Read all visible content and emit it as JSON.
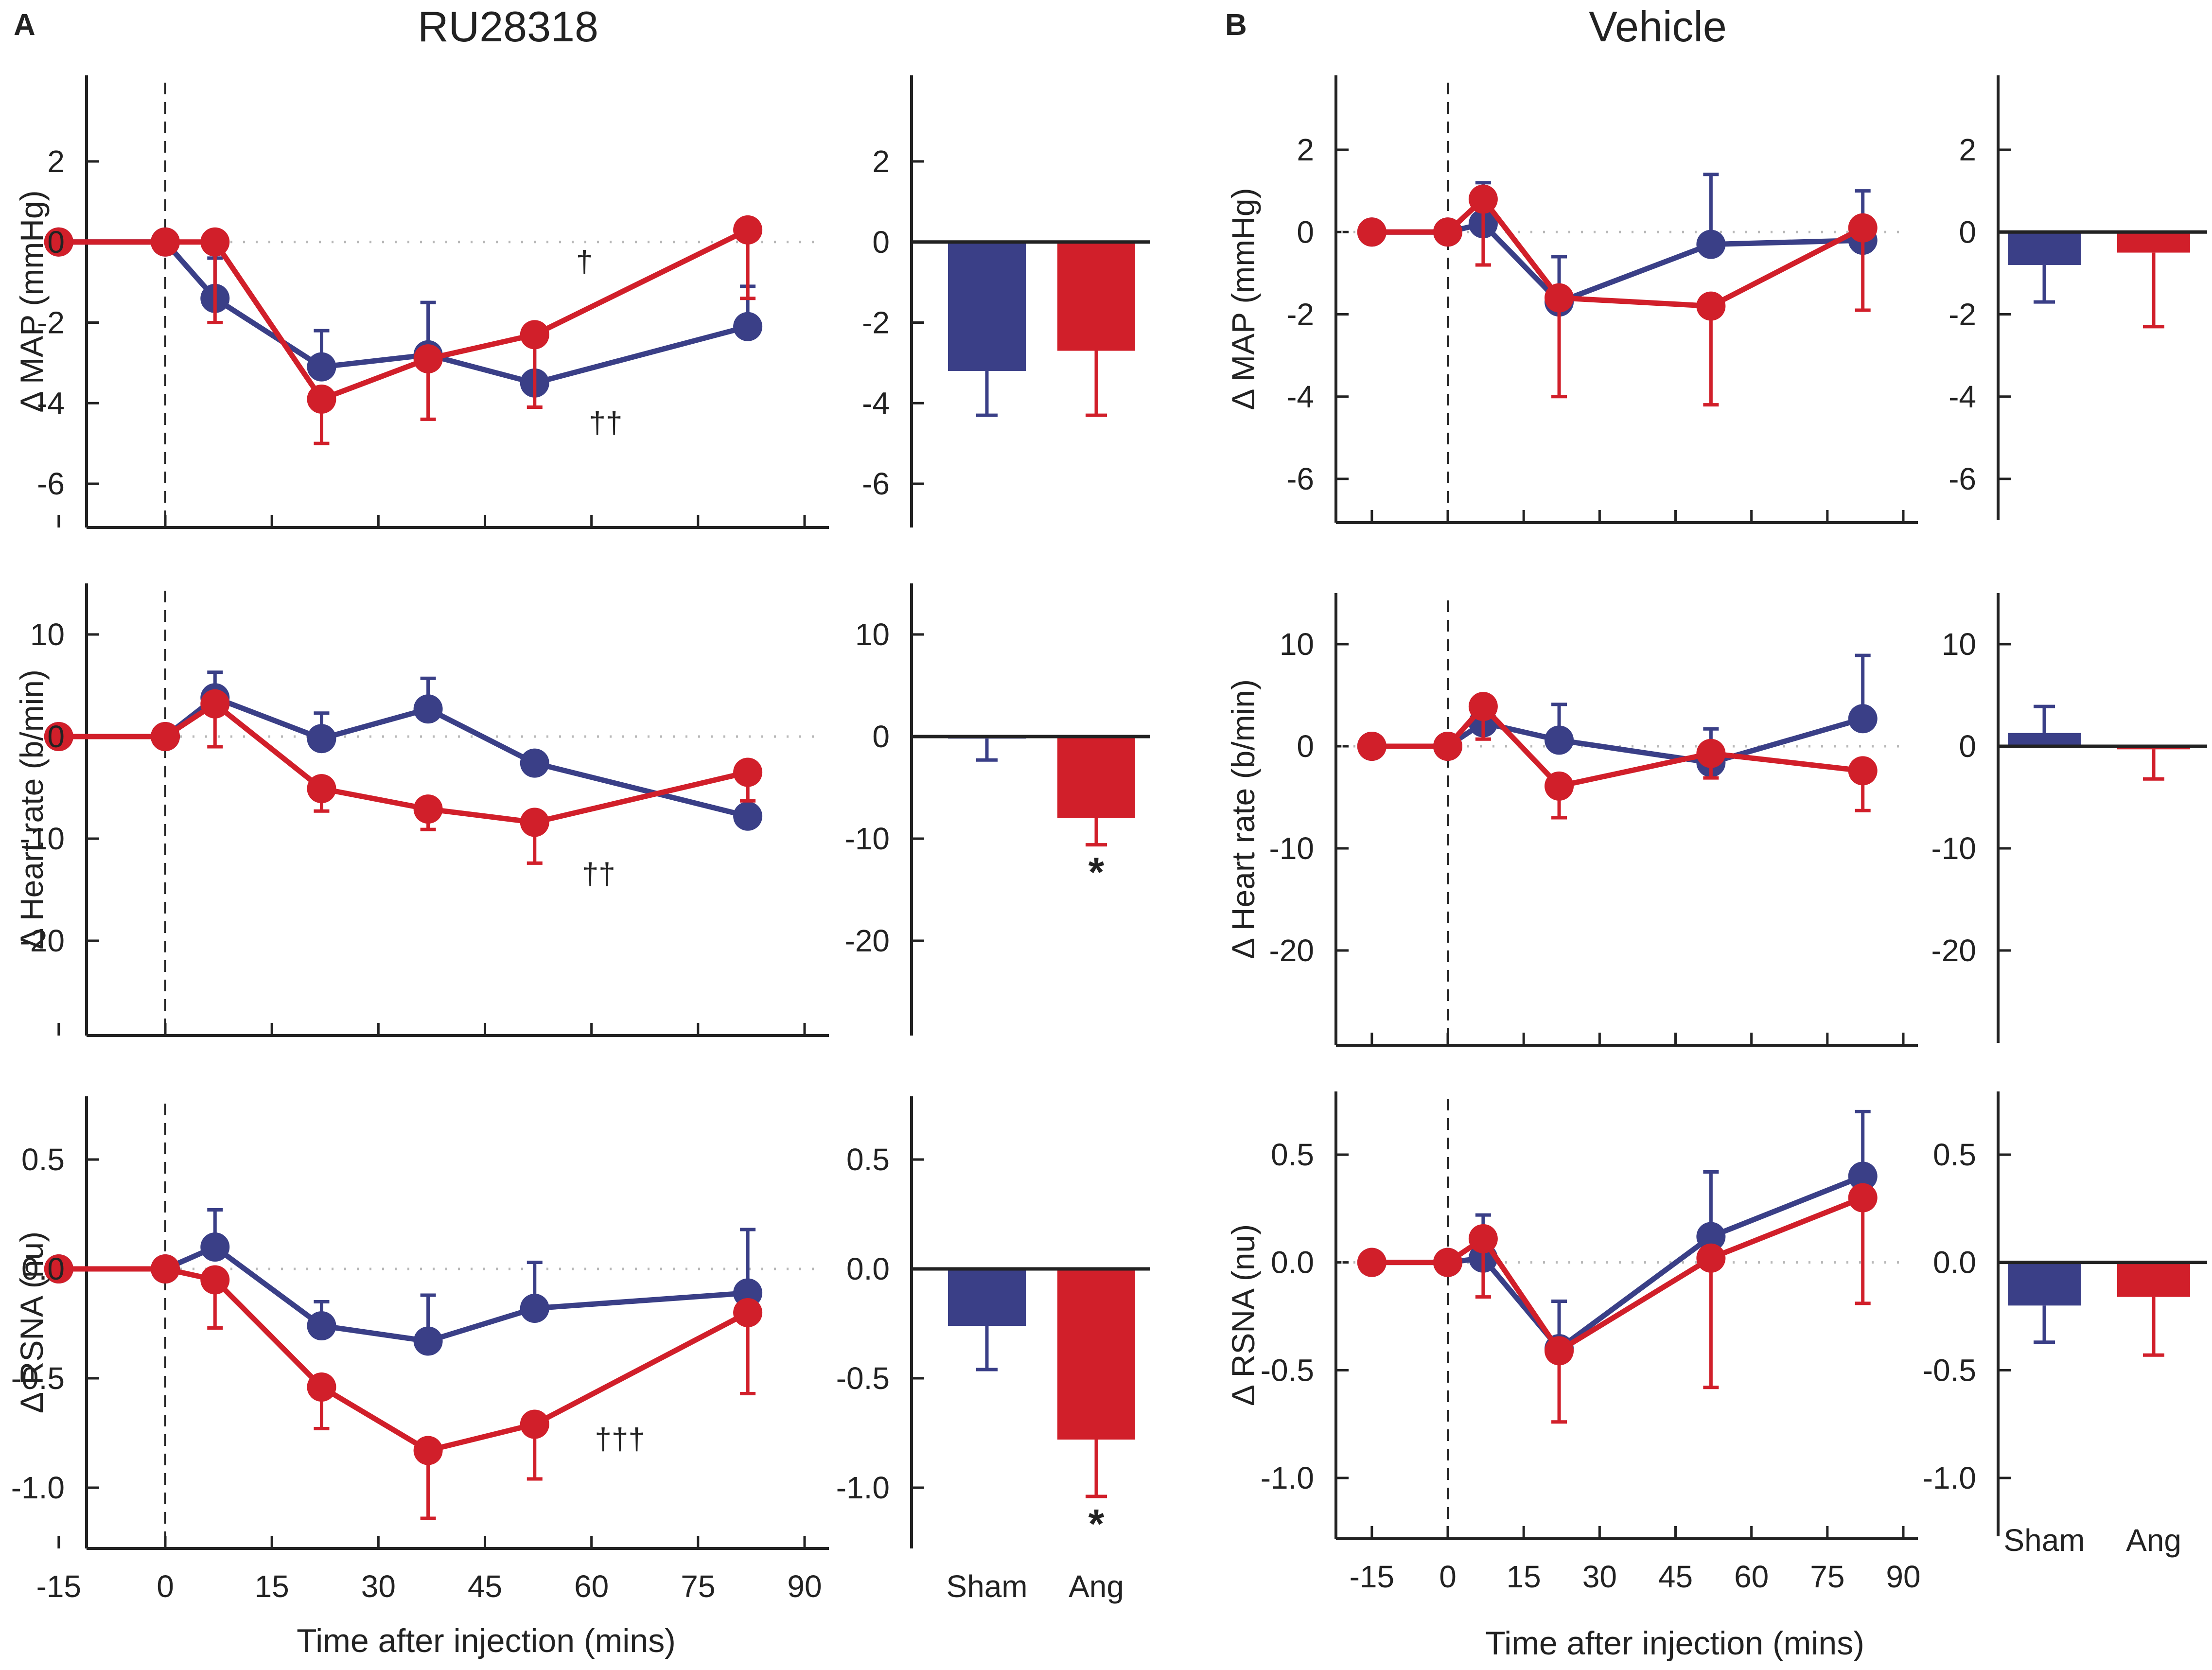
{
  "colors": {
    "sham": "#3a3f87",
    "ang": "#d11f2a",
    "axis": "#222222",
    "zero_line": "#b8b8b8"
  },
  "chart_data": [
    {
      "panel": "A",
      "title": "RU28318",
      "xlabel": "Time after injection (mins)",
      "x_ticks": [
        -15,
        0,
        15,
        30,
        45,
        60,
        75,
        90
      ],
      "x_tick_labels": [
        "-15",
        "0",
        "15",
        "30",
        "45",
        "60",
        "75",
        "90"
      ],
      "bar_categories": [
        "Sham",
        "Ang"
      ],
      "rows": [
        {
          "type": "line",
          "ylabel": "Δ MAP (mmHg)",
          "ylim": [
            -7,
            3.8
          ],
          "y_ticks": [
            2,
            0,
            -2,
            -4,
            -6
          ],
          "y_tick_labels": [
            "2",
            "0",
            "-2",
            "-4",
            "-6"
          ],
          "series": [
            {
              "name": "Sham",
              "x": [
                -15,
                0,
                7,
                22,
                37,
                52,
                82
              ],
              "y": [
                0,
                0,
                -1.4,
                -3.1,
                -2.8,
                -3.5,
                -2.1
              ],
              "err": [
                0,
                0,
                1.0,
                0.9,
                1.3,
                1.2,
                1.0
              ]
            },
            {
              "name": "Ang",
              "x": [
                -15,
                0,
                7,
                22,
                37,
                52,
                82
              ],
              "y": [
                0,
                0,
                0,
                -3.9,
                -2.9,
                -2.3,
                0.3
              ],
              "err": [
                0,
                0,
                2.0,
                1.1,
                1.5,
                1.8,
                1.7
              ]
            }
          ],
          "annotations": [
            {
              "text": "†",
              "x": 59,
              "y": -0.5
            },
            {
              "text": "††",
              "x": 62,
              "y": -4.5
            }
          ],
          "bars": {
            "ylim": [
              -7,
              3.8
            ],
            "y_ticks": [
              2,
              0,
              -2,
              -4,
              -6
            ],
            "y_tick_labels": [
              "2",
              "0",
              "-2",
              "-4",
              "-6"
            ],
            "values": [
              -3.2,
              -2.7
            ],
            "err": [
              1.1,
              1.6
            ],
            "stars": [
              "",
              ""
            ]
          }
        },
        {
          "type": "line",
          "ylabel": "Δ Heart rate (b/min)",
          "ylim": [
            -29,
            15
          ],
          "y_ticks": [
            10,
            0,
            -10,
            -20
          ],
          "y_tick_labels": [
            "10",
            "0",
            "-10",
            "-20"
          ],
          "series": [
            {
              "name": "Sham",
              "x": [
                -15,
                0,
                7,
                22,
                37,
                52,
                82
              ],
              "y": [
                0,
                0,
                3.8,
                -0.2,
                2.7,
                -2.6,
                -7.8
              ],
              "err": [
                0,
                0,
                2.5,
                2.5,
                3.0,
                0,
                4.5
              ]
            },
            {
              "name": "Ang",
              "x": [
                -15,
                0,
                7,
                22,
                37,
                52,
                82
              ],
              "y": [
                0,
                0,
                3.2,
                -5.1,
                -7.1,
                -8.4,
                -3.5
              ],
              "err": [
                0,
                0,
                4.2,
                2.2,
                2.0,
                4.0,
                2.8
              ]
            }
          ],
          "annotations": [
            {
              "text": "††",
              "x": 61,
              "y": -13.5
            }
          ],
          "bars": {
            "ylim": [
              -29,
              15
            ],
            "y_ticks": [
              10,
              0,
              -10,
              -20
            ],
            "y_tick_labels": [
              "10",
              "0",
              "-10",
              "-20"
            ],
            "values": [
              -0.2,
              -8.0
            ],
            "err": [
              2.1,
              2.6
            ],
            "stars": [
              "",
              "*"
            ]
          }
        },
        {
          "type": "line",
          "ylabel": "Δ RSNA (nu)",
          "ylim": [
            -1.27,
            0.77
          ],
          "y_ticks": [
            0.5,
            0.0,
            -0.5,
            -1.0
          ],
          "y_tick_labels": [
            "0.5",
            "0.0",
            "-0.5",
            "-1.0"
          ],
          "series": [
            {
              "name": "Sham",
              "x": [
                -15,
                0,
                7,
                22,
                37,
                52,
                82
              ],
              "y": [
                0,
                0,
                0.1,
                -0.26,
                -0.33,
                -0.18,
                -0.11
              ],
              "err": [
                0,
                0,
                0.17,
                0.11,
                0.21,
                0.21,
                0.29
              ]
            },
            {
              "name": "Ang",
              "x": [
                -15,
                0,
                7,
                22,
                37,
                52,
                82
              ],
              "y": [
                0,
                0,
                -0.05,
                -0.54,
                -0.83,
                -0.71,
                -0.2
              ],
              "err": [
                0,
                0,
                0.22,
                0.19,
                0.31,
                0.25,
                0.37
              ]
            }
          ],
          "annotations": [
            {
              "text": "†††",
              "x": 64,
              "y": -0.78
            }
          ],
          "bars": {
            "ylim": [
              -1.27,
              0.77
            ],
            "y_ticks": [
              0.5,
              0.0,
              -0.5,
              -1.0
            ],
            "y_tick_labels": [
              "0.5",
              "0.0",
              "-0.5",
              "-1.0"
            ],
            "values": [
              -0.26,
              -0.78
            ],
            "err": [
              0.2,
              0.26
            ],
            "stars": [
              "",
              "*"
            ]
          }
        }
      ]
    },
    {
      "panel": "B",
      "title": "Vehicle",
      "xlabel": "Time after injection (mins)",
      "x_ticks": [
        -15,
        0,
        15,
        30,
        45,
        60,
        75,
        90
      ],
      "x_tick_labels": [
        "-15",
        "0",
        "15",
        "30",
        "45",
        "60",
        "75",
        "90"
      ],
      "bar_categories": [
        "Sham",
        "Ang"
      ],
      "rows": [
        {
          "type": "line",
          "ylabel": "Δ MAP (mmHg)",
          "ylim": [
            -7,
            3.8
          ],
          "y_ticks": [
            2,
            0,
            -2,
            -4,
            -6
          ],
          "y_tick_labels": [
            "2",
            "0",
            "-2",
            "-4",
            "-6"
          ],
          "series": [
            {
              "name": "Sham",
              "x": [
                -15,
                0,
                7,
                22,
                52,
                82
              ],
              "y": [
                0,
                0,
                0.2,
                -1.7,
                -0.3,
                -0.2
              ],
              "err": [
                0,
                0,
                1.0,
                1.1,
                1.7,
                1.2
              ]
            },
            {
              "name": "Ang",
              "x": [
                -15,
                0,
                7,
                22,
                52,
                82
              ],
              "y": [
                0,
                0,
                0.8,
                -1.6,
                -1.8,
                0.1
              ],
              "err": [
                0,
                0,
                1.6,
                2.4,
                2.4,
                2.0
              ]
            }
          ],
          "annotations": [],
          "bars": {
            "ylim": [
              -7,
              3.8
            ],
            "y_ticks": [
              2,
              0,
              -2,
              -4,
              -6
            ],
            "y_tick_labels": [
              "2",
              "0",
              "-2",
              "-4",
              "-6"
            ],
            "values": [
              -0.8,
              -0.5
            ],
            "err": [
              0.9,
              1.8
            ],
            "stars": [
              "",
              ""
            ]
          }
        },
        {
          "type": "line",
          "ylabel": "Δ Heart rate (b/min)",
          "ylim": [
            -29,
            15
          ],
          "y_ticks": [
            10,
            0,
            -10,
            -20
          ],
          "y_tick_labels": [
            "10",
            "0",
            "-10",
            "-20"
          ],
          "series": [
            {
              "name": "Sham",
              "x": [
                -15,
                0,
                7,
                22,
                52,
                82
              ],
              "y": [
                0,
                0,
                2.3,
                0.6,
                -1.6,
                2.7
              ],
              "err": [
                0,
                0,
                2.0,
                3.5,
                3.3,
                6.2
              ]
            },
            {
              "name": "Ang",
              "x": [
                -15,
                0,
                7,
                22,
                52,
                82
              ],
              "y": [
                0,
                0,
                3.9,
                -3.9,
                -0.7,
                -2.4
              ],
              "err": [
                0,
                0,
                3.2,
                3.1,
                2.4,
                3.9
              ]
            }
          ],
          "annotations": [],
          "bars": {
            "ylim": [
              -29,
              15
            ],
            "y_ticks": [
              10,
              0,
              -10,
              -20
            ],
            "y_tick_labels": [
              "10",
              "0",
              "-10",
              "-20"
            ],
            "values": [
              1.3,
              -0.3
            ],
            "err": [
              2.6,
              2.9
            ],
            "stars": [
              "",
              ""
            ]
          }
        },
        {
          "type": "line",
          "ylabel": "Δ RSNA (nu)",
          "ylim": [
            -1.27,
            0.77
          ],
          "y_ticks": [
            0.5,
            0.0,
            -0.5,
            -1.0
          ],
          "y_tick_labels": [
            "0.5",
            "0.0",
            "-0.5",
            "-1.0"
          ],
          "series": [
            {
              "name": "Sham",
              "x": [
                -15,
                0,
                7,
                22,
                52,
                82
              ],
              "y": [
                0,
                0,
                0.02,
                -0.4,
                0.12,
                0.4
              ],
              "err": [
                0,
                0,
                0.2,
                0.22,
                0.3,
                0.3
              ]
            },
            {
              "name": "Ang",
              "x": [
                -15,
                0,
                7,
                22,
                52,
                82
              ],
              "y": [
                0,
                0,
                0.11,
                -0.41,
                0.02,
                0.3
              ],
              "err": [
                0,
                0,
                0.27,
                0.33,
                0.6,
                0.49
              ]
            }
          ],
          "annotations": [],
          "bars": {
            "ylim": [
              -1.27,
              0.77
            ],
            "y_ticks": [
              0.5,
              0.0,
              -0.5,
              -1.0
            ],
            "y_tick_labels": [
              "0.5",
              "0.0",
              "-0.5",
              "-1.0"
            ],
            "values": [
              -0.2,
              -0.16
            ],
            "err": [
              0.17,
              0.27
            ],
            "stars": [
              "",
              ""
            ]
          }
        }
      ]
    }
  ]
}
